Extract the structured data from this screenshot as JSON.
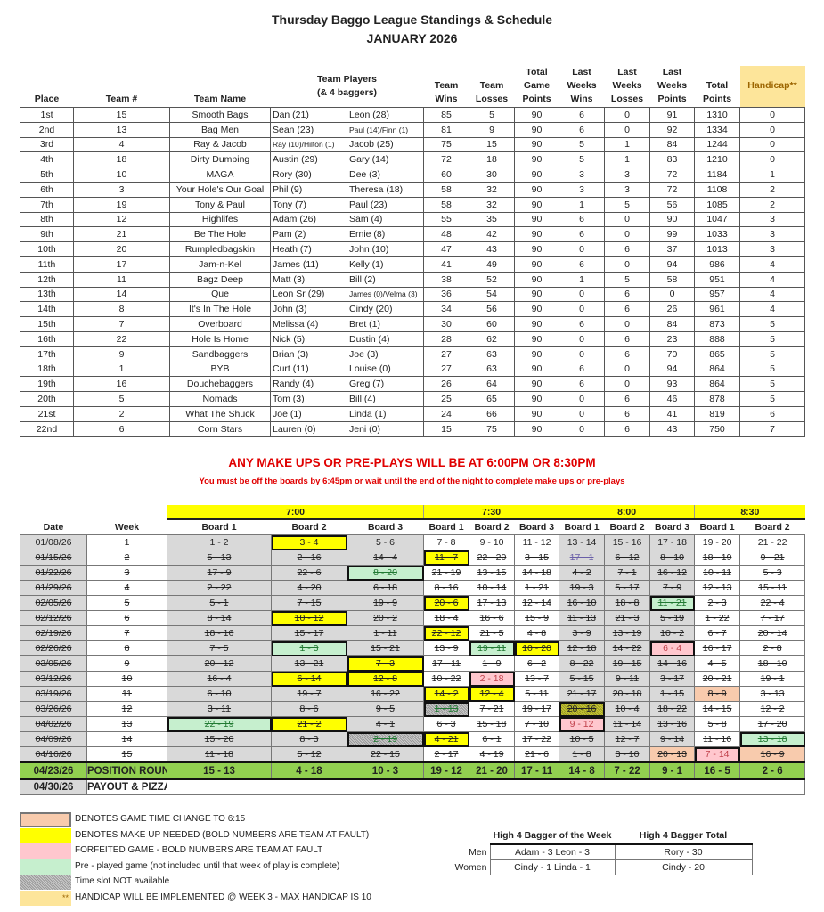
{
  "title": "Thursday Baggo League Standings & Schedule",
  "subtitle": "JANUARY 2026",
  "standings": {
    "headers": [
      "Place",
      "Team #",
      "Team Name",
      "Team Players\n(& 4 baggers)",
      "Team Wins",
      "Team Losses",
      "Total Game Points",
      "Last Weeks Wins",
      "Last Weeks Losses",
      "Last Weeks Points",
      "Total Points",
      "Handicap**"
    ],
    "rows": [
      [
        "1st",
        "15",
        "Smooth Bags",
        "Dan (21)",
        "Leon (28)",
        "85",
        "5",
        "90",
        "6",
        "0",
        "91",
        "1310",
        "0"
      ],
      [
        "2nd",
        "13",
        "Bag Men",
        "Sean (23)",
        "Paul (14)/Finn (1)",
        "81",
        "9",
        "90",
        "6",
        "0",
        "92",
        "1334",
        "0"
      ],
      [
        "3rd",
        "4",
        "Ray & Jacob",
        "Ray (10)/Hilton (1)",
        "Jacob (25)",
        "75",
        "15",
        "90",
        "5",
        "1",
        "84",
        "1244",
        "0"
      ],
      [
        "4th",
        "18",
        "Dirty Dumping",
        "Austin (29)",
        "Gary (14)",
        "72",
        "18",
        "90",
        "5",
        "1",
        "83",
        "1210",
        "0"
      ],
      [
        "5th",
        "10",
        "MAGA",
        "Rory (30)",
        "Dee (3)",
        "60",
        "30",
        "90",
        "3",
        "3",
        "72",
        "1184",
        "1"
      ],
      [
        "6th",
        "3",
        "Your Hole's Our Goal",
        "Phil (9)",
        "Theresa (18)",
        "58",
        "32",
        "90",
        "3",
        "3",
        "72",
        "1108",
        "2"
      ],
      [
        "7th",
        "19",
        "Tony & Paul",
        "Tony (7)",
        "Paul (23)",
        "58",
        "32",
        "90",
        "1",
        "5",
        "56",
        "1085",
        "2"
      ],
      [
        "8th",
        "12",
        "Highlifes",
        "Adam (26)",
        "Sam (4)",
        "55",
        "35",
        "90",
        "6",
        "0",
        "90",
        "1047",
        "3"
      ],
      [
        "9th",
        "21",
        "Be The Hole",
        "Pam (2)",
        "Ernie (8)",
        "48",
        "42",
        "90",
        "6",
        "0",
        "99",
        "1033",
        "3"
      ],
      [
        "10th",
        "20",
        "Rumpledbagskin",
        "Heath (7)",
        "John (10)",
        "47",
        "43",
        "90",
        "0",
        "6",
        "37",
        "1013",
        "3"
      ],
      [
        "11th",
        "17",
        "Jam-n-Kel",
        "James (11)",
        "Kelly (1)",
        "41",
        "49",
        "90",
        "6",
        "0",
        "94",
        "986",
        "4"
      ],
      [
        "12th",
        "11",
        "Bagz Deep",
        "Matt (3)",
        "Bill (2)",
        "38",
        "52",
        "90",
        "1",
        "5",
        "58",
        "951",
        "4"
      ],
      [
        "13th",
        "14",
        "Que",
        "Leon Sr (29)",
        "James (0)/Velma (3)",
        "36",
        "54",
        "90",
        "0",
        "6",
        "0",
        "957",
        "4"
      ],
      [
        "14th",
        "8",
        "It's In The Hole",
        "John (3)",
        "Cindy (20)",
        "34",
        "56",
        "90",
        "0",
        "6",
        "26",
        "961",
        "4"
      ],
      [
        "15th",
        "7",
        "Overboard",
        "Melissa (4)",
        "Bret (1)",
        "30",
        "60",
        "90",
        "6",
        "0",
        "84",
        "873",
        "5"
      ],
      [
        "16th",
        "22",
        "Hole Is Home",
        "Nick (5)",
        "Dustin (4)",
        "28",
        "62",
        "90",
        "0",
        "6",
        "23",
        "888",
        "5"
      ],
      [
        "17th",
        "9",
        "Sandbaggers",
        "Brian (3)",
        "Joe (3)",
        "27",
        "63",
        "90",
        "0",
        "6",
        "70",
        "865",
        "5"
      ],
      [
        "18th",
        "1",
        "BYB",
        "Curt (11)",
        "Louise (0)",
        "27",
        "63",
        "90",
        "6",
        "0",
        "94",
        "864",
        "5"
      ],
      [
        "19th",
        "16",
        "Douchebaggers",
        "Randy (4)",
        "Greg (7)",
        "26",
        "64",
        "90",
        "6",
        "0",
        "93",
        "864",
        "5"
      ],
      [
        "20th",
        "5",
        "Nomads",
        "Tom (3)",
        "Bill (4)",
        "25",
        "65",
        "90",
        "0",
        "6",
        "46",
        "878",
        "5"
      ],
      [
        "21st",
        "2",
        "What The Shuck",
        "Joe (1)",
        "Linda (1)",
        "24",
        "66",
        "90",
        "0",
        "6",
        "41",
        "819",
        "6"
      ],
      [
        "22nd",
        "6",
        "Corn Stars",
        "Lauren (0)",
        "Jeni (0)",
        "15",
        "75",
        "90",
        "0",
        "6",
        "43",
        "750",
        "7"
      ]
    ]
  },
  "notice": "ANY MAKE UPS OR PRE-PLAYS WILL BE AT 6:00PM OR 8:30PM",
  "notice_sub": "You must be off the boards by 6:45pm or wait until the end of the night to complete make ups or pre-plays",
  "schedule": {
    "times": [
      "7:00",
      "7:30",
      "8:00",
      "8:30"
    ],
    "date_label": "Date",
    "week_label": "Week",
    "boards": [
      "Board 1",
      "Board 2",
      "Board 3",
      "Board 1",
      "Board 2",
      "Board 3",
      "Board 1",
      "Board 2",
      "Board 3",
      "Board 1",
      "Board 2"
    ],
    "rows": [
      {
        "date": "01/08/26",
        "week": "1",
        "done": true,
        "games": [
          [
            "1 - 2"
          ],
          [
            "3 - 4",
            "y"
          ],
          [
            "5 - 6"
          ],
          [
            "7 - 8"
          ],
          [
            "9 - 10"
          ],
          [
            "11 - 12"
          ],
          [
            "13 - 14"
          ],
          [
            "15 - 16"
          ],
          [
            "17 - 18"
          ],
          [
            "19 - 20"
          ],
          [
            "21 - 22"
          ]
        ]
      },
      {
        "date": "01/15/26",
        "week": "2",
        "done": true,
        "games": [
          [
            "5 - 13"
          ],
          [
            "2 - 16"
          ],
          [
            "14 - 4"
          ],
          [
            "11 - 7",
            "y"
          ],
          [
            "22 - 20"
          ],
          [
            "3 - 15"
          ],
          [
            "17 - 1",
            "b"
          ],
          [
            "6 - 12"
          ],
          [
            "8 - 10"
          ],
          [
            "18 - 19"
          ],
          [
            "9 - 21"
          ]
        ]
      },
      {
        "date": "01/22/26",
        "week": "3",
        "done": true,
        "games": [
          [
            "17 - 9"
          ],
          [
            "22 - 6"
          ],
          [
            "8 - 20",
            "g"
          ],
          [
            "21 - 19"
          ],
          [
            "13 - 15"
          ],
          [
            "14 - 18"
          ],
          [
            "4 - 2"
          ],
          [
            "7 - 1"
          ],
          [
            "16 - 12"
          ],
          [
            "10 - 11"
          ],
          [
            "5 - 3"
          ]
        ]
      },
      {
        "date": "01/29/26",
        "week": "4",
        "done": true,
        "games": [
          [
            "2 - 22"
          ],
          [
            "4 - 20"
          ],
          [
            "6 - 18"
          ],
          [
            "8 - 16"
          ],
          [
            "10 - 14"
          ],
          [
            "1 - 21"
          ],
          [
            "19 - 3"
          ],
          [
            "5 - 17"
          ],
          [
            "7 - 9"
          ],
          [
            "12 - 13"
          ],
          [
            "15 - 11"
          ]
        ]
      },
      {
        "date": "02/05/26",
        "week": "5",
        "done": true,
        "games": [
          [
            "5 - 1"
          ],
          [
            "7 - 15"
          ],
          [
            "19 - 9"
          ],
          [
            "20 - 6",
            "y"
          ],
          [
            "17 - 13"
          ],
          [
            "12 - 14"
          ],
          [
            "16 - 10"
          ],
          [
            "18 - 8"
          ],
          [
            "11 - 21",
            "g"
          ],
          [
            "2 - 3"
          ],
          [
            "22 - 4"
          ]
        ]
      },
      {
        "date": "02/12/26",
        "week": "6",
        "done": true,
        "games": [
          [
            "8 - 14"
          ],
          [
            "10 - 12",
            "y"
          ],
          [
            "20 - 2"
          ],
          [
            "18 - 4"
          ],
          [
            "16 - 6"
          ],
          [
            "15 - 9"
          ],
          [
            "11 - 13"
          ],
          [
            "21 - 3"
          ],
          [
            "5 - 19"
          ],
          [
            "1 - 22"
          ],
          [
            "7 - 17"
          ]
        ]
      },
      {
        "date": "02/19/26",
        "week": "7",
        "done": true,
        "games": [
          [
            "18 - 16"
          ],
          [
            "15 - 17"
          ],
          [
            "1 - 11"
          ],
          [
            "22 - 12",
            "y"
          ],
          [
            "21 - 5"
          ],
          [
            "4 - 8"
          ],
          [
            "3 - 9"
          ],
          [
            "13 - 19"
          ],
          [
            "10 - 2"
          ],
          [
            "6 - 7"
          ],
          [
            "20 - 14"
          ]
        ]
      },
      {
        "date": "02/26/26",
        "week": "8",
        "done": true,
        "games": [
          [
            "7 - 5"
          ],
          [
            "1 - 3",
            "g"
          ],
          [
            "15 - 21"
          ],
          [
            "13 - 9"
          ],
          [
            "19 - 11",
            "g"
          ],
          [
            "10 - 20",
            "y"
          ],
          [
            "12 - 18"
          ],
          [
            "14 - 22"
          ],
          [
            "6 - 4",
            "p"
          ],
          [
            "16 - 17"
          ],
          [
            "2 - 8"
          ]
        ]
      },
      {
        "date": "03/05/26",
        "week": "9",
        "done": true,
        "games": [
          [
            "20 - 12"
          ],
          [
            "13 - 21"
          ],
          [
            "7 - 3",
            "y"
          ],
          [
            "17 - 11"
          ],
          [
            "1 - 9"
          ],
          [
            "6 - 2"
          ],
          [
            "8 - 22"
          ],
          [
            "19 - 15"
          ],
          [
            "14 - 16"
          ],
          [
            "4 - 5"
          ],
          [
            "18 - 10"
          ]
        ]
      },
      {
        "date": "03/12/26",
        "week": "10",
        "done": true,
        "games": [
          [
            "16 - 4"
          ],
          [
            "6 - 14",
            "y"
          ],
          [
            "12 - 8",
            "y"
          ],
          [
            "10 - 22"
          ],
          [
            "2 - 18",
            "p"
          ],
          [
            "13 - 7"
          ],
          [
            "5 - 15"
          ],
          [
            "9 - 11"
          ],
          [
            "3 - 17"
          ],
          [
            "20 - 21"
          ],
          [
            "19 - 1"
          ]
        ]
      },
      {
        "date": "03/19/26",
        "week": "11",
        "done": true,
        "games": [
          [
            "6 - 10"
          ],
          [
            "19 - 7"
          ],
          [
            "16 - 22"
          ],
          [
            "14 - 2",
            "y"
          ],
          [
            "12 - 4",
            "y"
          ],
          [
            "5 - 11"
          ],
          [
            "21 - 17"
          ],
          [
            "20 - 18"
          ],
          [
            "1 - 15"
          ],
          [
            "8 - 9",
            "o"
          ],
          [
            "3 - 13"
          ]
        ]
      },
      {
        "date": "03/26/26",
        "week": "12",
        "done": true,
        "games": [
          [
            "3 - 11"
          ],
          [
            "8 - 6"
          ],
          [
            "9 - 5"
          ],
          [
            "1 - 13",
            "h"
          ],
          [
            "7 - 21"
          ],
          [
            "19 - 17"
          ],
          [
            "20 - 16",
            "hy"
          ],
          [
            "10 - 4"
          ],
          [
            "18 - 22"
          ],
          [
            "14 - 15"
          ],
          [
            "12 - 2"
          ]
        ]
      },
      {
        "date": "04/02/26",
        "week": "13",
        "done": true,
        "games": [
          [
            "22 - 19",
            "g"
          ],
          [
            "21 - 2",
            "y"
          ],
          [
            "4 - 1"
          ],
          [
            "6 - 3"
          ],
          [
            "15 - 18"
          ],
          [
            "7 - 10"
          ],
          [
            "9 - 12",
            "p"
          ],
          [
            "11 - 14"
          ],
          [
            "13 - 16"
          ],
          [
            "5 - 8"
          ],
          [
            "17 - 20"
          ]
        ]
      },
      {
        "date": "04/09/26",
        "week": "14",
        "done": true,
        "games": [
          [
            "15 - 20"
          ],
          [
            "8 - 3"
          ],
          [
            "2 - 19",
            "h"
          ],
          [
            "4 - 21",
            "y"
          ],
          [
            "6 - 1"
          ],
          [
            "17 - 22"
          ],
          [
            "10 - 5"
          ],
          [
            "12 - 7"
          ],
          [
            "9 - 14"
          ],
          [
            "11 - 16"
          ],
          [
            "13 - 18",
            "g"
          ]
        ]
      },
      {
        "date": "04/16/26",
        "week": "15",
        "done": true,
        "games": [
          [
            "11 - 18"
          ],
          [
            "5 - 12"
          ],
          [
            "22 - 15"
          ],
          [
            "2 - 17"
          ],
          [
            "4 - 19"
          ],
          [
            "21 - 6"
          ],
          [
            "1 - 8"
          ],
          [
            "3 - 10"
          ],
          [
            "20 - 13",
            "o"
          ],
          [
            "7 - 14",
            "p"
          ],
          [
            "16 - 9",
            "o"
          ]
        ]
      }
    ],
    "position_round": {
      "date": "04/23/26",
      "label": "POSITION ROUND",
      "games": [
        "15 - 13",
        "4 - 18",
        "10 - 3",
        "19 - 12",
        "21 - 20",
        "17 - 11",
        "14 - 8",
        "7 - 22",
        "9 - 1",
        "16 - 5",
        "2 - 6"
      ]
    },
    "payout": {
      "date": "04/30/26",
      "label": "PAYOUT & PIZZA"
    }
  },
  "legend": [
    {
      "color": "#f8cbad",
      "text": "DENOTES GAME TIME CHANGE TO 6:15"
    },
    {
      "color": "#ffff00",
      "text": "DENOTES MAKE UP NEEDED (BOLD NUMBERS ARE TEAM AT FAULT)"
    },
    {
      "color": "#ffc7ce",
      "text": "FORFEITED GAME - BOLD NUMBERS ARE TEAM AT FAULT"
    },
    {
      "color": "#c6efce",
      "text": "Pre - played game (not included until that week of play is complete)"
    },
    {
      "color": "hatch",
      "text": "Time slot NOT available"
    },
    {
      "color": "#fde59a",
      "text": "HANDICAP WILL BE IMPLEMENTED @ WEEK 3 - MAX HANDICAP IS 10",
      "mark": "**"
    }
  ],
  "high_bagger": {
    "headers": [
      "High 4 Bagger of the Week",
      "High 4 Bagger Total"
    ],
    "rows": [
      {
        "label": "Men",
        "week": "Adam - 3   Leon - 3",
        "total": "Rory - 30"
      },
      {
        "label": "Women",
        "week": "Cindy - 1   Linda - 1",
        "total": "Cindy - 20"
      }
    ]
  }
}
